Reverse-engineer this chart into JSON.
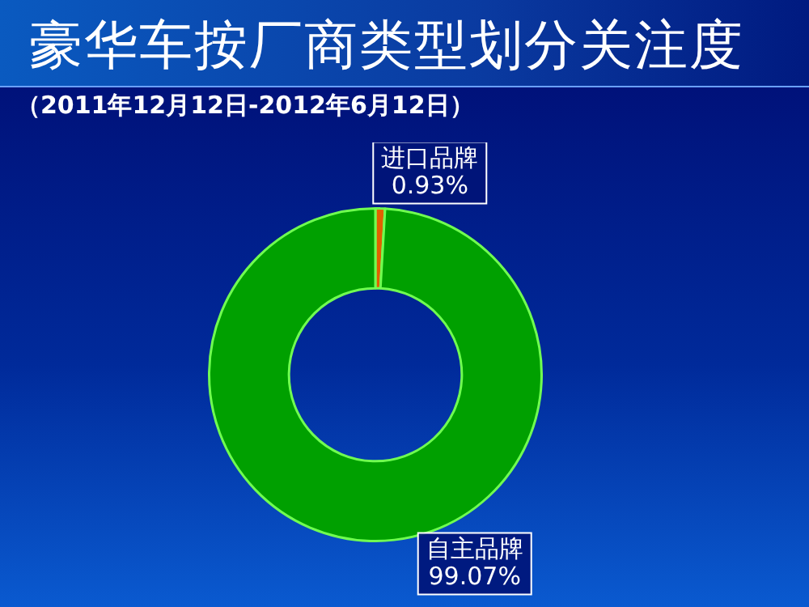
{
  "chart_data": {
    "type": "donut",
    "title": "豪华车按厂商类型划分关注度",
    "subtitle": "（2011年12月12日-2012年6月12日）",
    "categories": [
      "进口品牌",
      "自主品牌"
    ],
    "values": [
      0.93,
      99.07
    ],
    "colors": [
      "#e06000",
      "#00a000"
    ],
    "value_labels": [
      "0.93%",
      "99.07%"
    ],
    "legend": false
  }
}
